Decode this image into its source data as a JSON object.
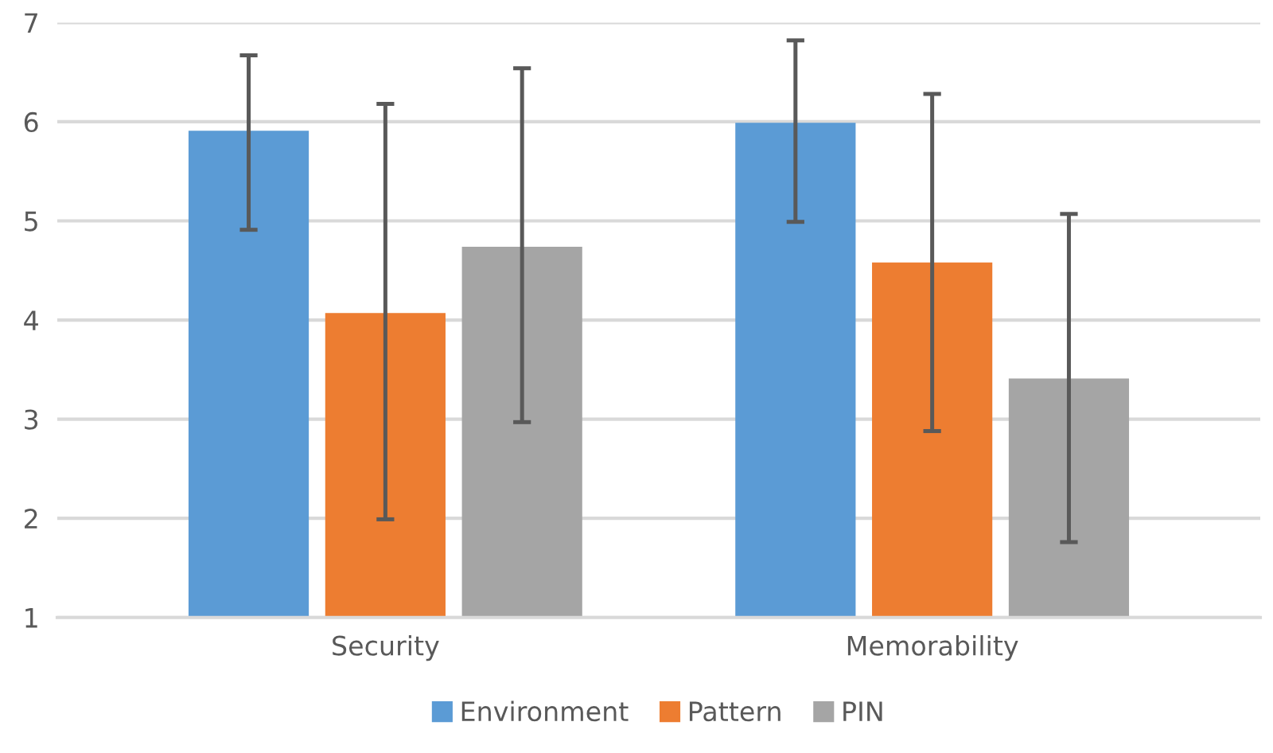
{
  "chart_data": {
    "type": "bar",
    "categories": [
      "Security",
      "Memorability"
    ],
    "series": [
      {
        "name": "Environment",
        "color": "#5b9bd5",
        "values": [
          5.91,
          5.99
        ],
        "errors": [
          [
            4.91,
            6.67
          ],
          [
            4.99,
            6.82
          ]
        ]
      },
      {
        "name": "Pattern",
        "color": "#ed7d31",
        "values": [
          4.07,
          4.58
        ],
        "errors": [
          [
            1.99,
            6.18
          ],
          [
            2.88,
            6.28
          ]
        ]
      },
      {
        "name": "PIN",
        "color": "#a5a5a5",
        "values": [
          4.74,
          3.41
        ],
        "errors": [
          [
            2.97,
            6.54
          ],
          [
            1.76,
            5.07
          ]
        ]
      }
    ],
    "ylim": [
      1,
      7
    ],
    "yticks": [
      1,
      2,
      3,
      4,
      5,
      6,
      7
    ],
    "grid": "y",
    "legend": "bottom"
  }
}
